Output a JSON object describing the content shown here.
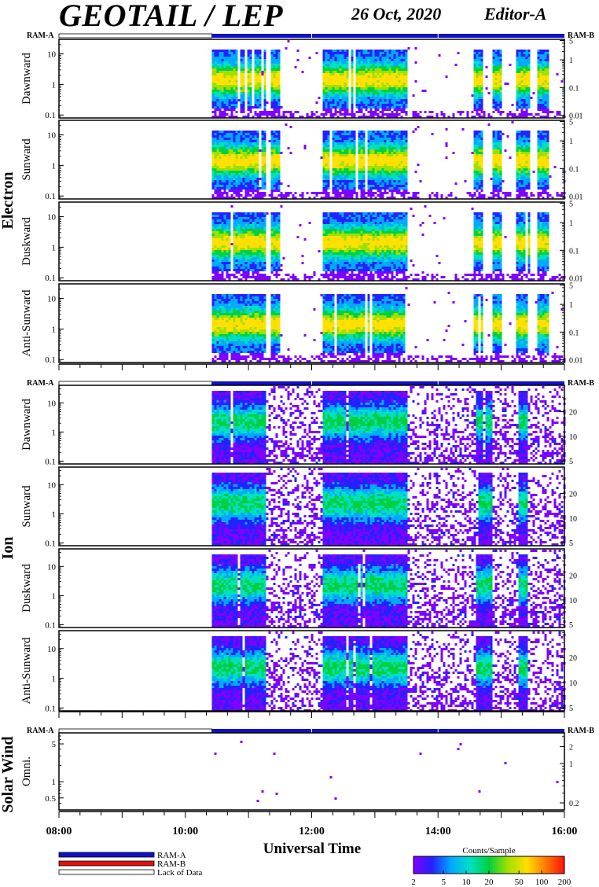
{
  "header": {
    "instrument": "GEOTAIL / LEP",
    "date": "26 Oct, 2020",
    "editor": "Editor-A"
  },
  "ram_labels": {
    "a": "RAM-A",
    "b": "RAM-B"
  },
  "xaxis": {
    "title": "Universal Time",
    "range_hours": [
      8,
      16
    ],
    "tick_labels": [
      "08:00",
      "10:00",
      "12:00",
      "14:00",
      "16:00"
    ],
    "tick_hours": [
      8,
      10,
      12,
      14,
      16
    ]
  },
  "data_coverage": {
    "lack_of_data_until_hour": 10.42,
    "mode_after": "RAM-A"
  },
  "groups": [
    {
      "label": "Electron",
      "panels": [
        {
          "label": "Dawnward",
          "left_ticks": [
            "10",
            "1",
            "0.1"
          ],
          "right_ticks": [
            "5",
            "1",
            "0.1",
            "0.01"
          ]
        },
        {
          "label": "Sunward",
          "left_ticks": [
            "10",
            "1",
            "0.1"
          ],
          "right_ticks": [
            "5",
            "1",
            "0.1",
            "0.01"
          ]
        },
        {
          "label": "Duskward",
          "left_ticks": [
            "10",
            "1",
            "0.1"
          ],
          "right_ticks": [
            "5",
            "1",
            "0.1",
            "0.01"
          ]
        },
        {
          "label": "Anti-Sunward",
          "left_ticks": [
            "10",
            "1",
            "0.1"
          ],
          "right_ticks": [
            "5",
            "1",
            "0.1",
            "0.01"
          ]
        }
      ]
    },
    {
      "label": "Ion",
      "panels": [
        {
          "label": "Dawnward",
          "left_ticks": [
            "10",
            "1",
            "0.1"
          ],
          "right_ticks": [
            "20",
            "10",
            "5"
          ]
        },
        {
          "label": "Sunward",
          "left_ticks": [
            "10",
            "1",
            "0.1"
          ],
          "right_ticks": [
            "20",
            "10",
            "5"
          ]
        },
        {
          "label": "Duskward",
          "left_ticks": [
            "10",
            "1",
            "0.1"
          ],
          "right_ticks": [
            "20",
            "10",
            "5"
          ]
        },
        {
          "label": "Anti-Sunward",
          "left_ticks": [
            "10",
            "1",
            "0.1"
          ],
          "right_ticks": [
            "20",
            "10",
            "5"
          ]
        }
      ]
    },
    {
      "label": "Solar Wind",
      "panels": [
        {
          "label": "Omni.",
          "left_ticks": [
            "5",
            "1",
            "0.5"
          ],
          "right_ticks": [
            "2",
            "1",
            "0.2"
          ]
        }
      ]
    }
  ],
  "legend": {
    "items": [
      {
        "label": "RAM-A",
        "color": "#1010c8"
      },
      {
        "label": "RAM-B",
        "color": "#e01010"
      },
      {
        "label": "Lack of Data",
        "color": "#ffffff"
      }
    ]
  },
  "colorbar": {
    "title": "Counts/Sample",
    "tick_labels": [
      "2",
      "5",
      "10",
      "20",
      "50",
      "100",
      "200"
    ],
    "colors": [
      "#7f00ff",
      "#2222ff",
      "#00aaff",
      "#00e0c0",
      "#00d040",
      "#a0e000",
      "#ffe000",
      "#ff7a00",
      "#ff1010"
    ]
  },
  "chart_data": {
    "type": "heatmap",
    "title": "GEOTAIL / LEP",
    "xlabel": "Universal Time",
    "x_range_hours": [
      8,
      16
    ],
    "yscale": "log",
    "electron_panels": [
      "Dawnward",
      "Sunward",
      "Duskward",
      "Anti-Sunward"
    ],
    "ion_panels": [
      "Dawnward",
      "Sunward",
      "Duskward",
      "Anti-Sunward"
    ],
    "solar_wind_panels": [
      "Omni."
    ],
    "electron_ylim": [
      0.08,
      30
    ],
    "ion_ylim": [
      0.08,
      40
    ],
    "solar_wind_ylim": [
      0.3,
      8
    ],
    "electron_activity_intervals_hours": [
      [
        10.42,
        11.25
      ],
      [
        11.35,
        11.5
      ],
      [
        12.15,
        13.5
      ],
      [
        14.55,
        14.7
      ],
      [
        14.85,
        15.0
      ],
      [
        15.2,
        15.45
      ],
      [
        15.55,
        15.75
      ]
    ],
    "ion_activity_intervals_hours": [
      [
        10.42,
        11.25
      ],
      [
        12.15,
        13.5
      ],
      [
        14.6,
        14.85
      ],
      [
        15.25,
        15.4
      ]
    ],
    "colorbar_range_counts": [
      2,
      200
    ],
    "colorbar_scale": "log"
  }
}
